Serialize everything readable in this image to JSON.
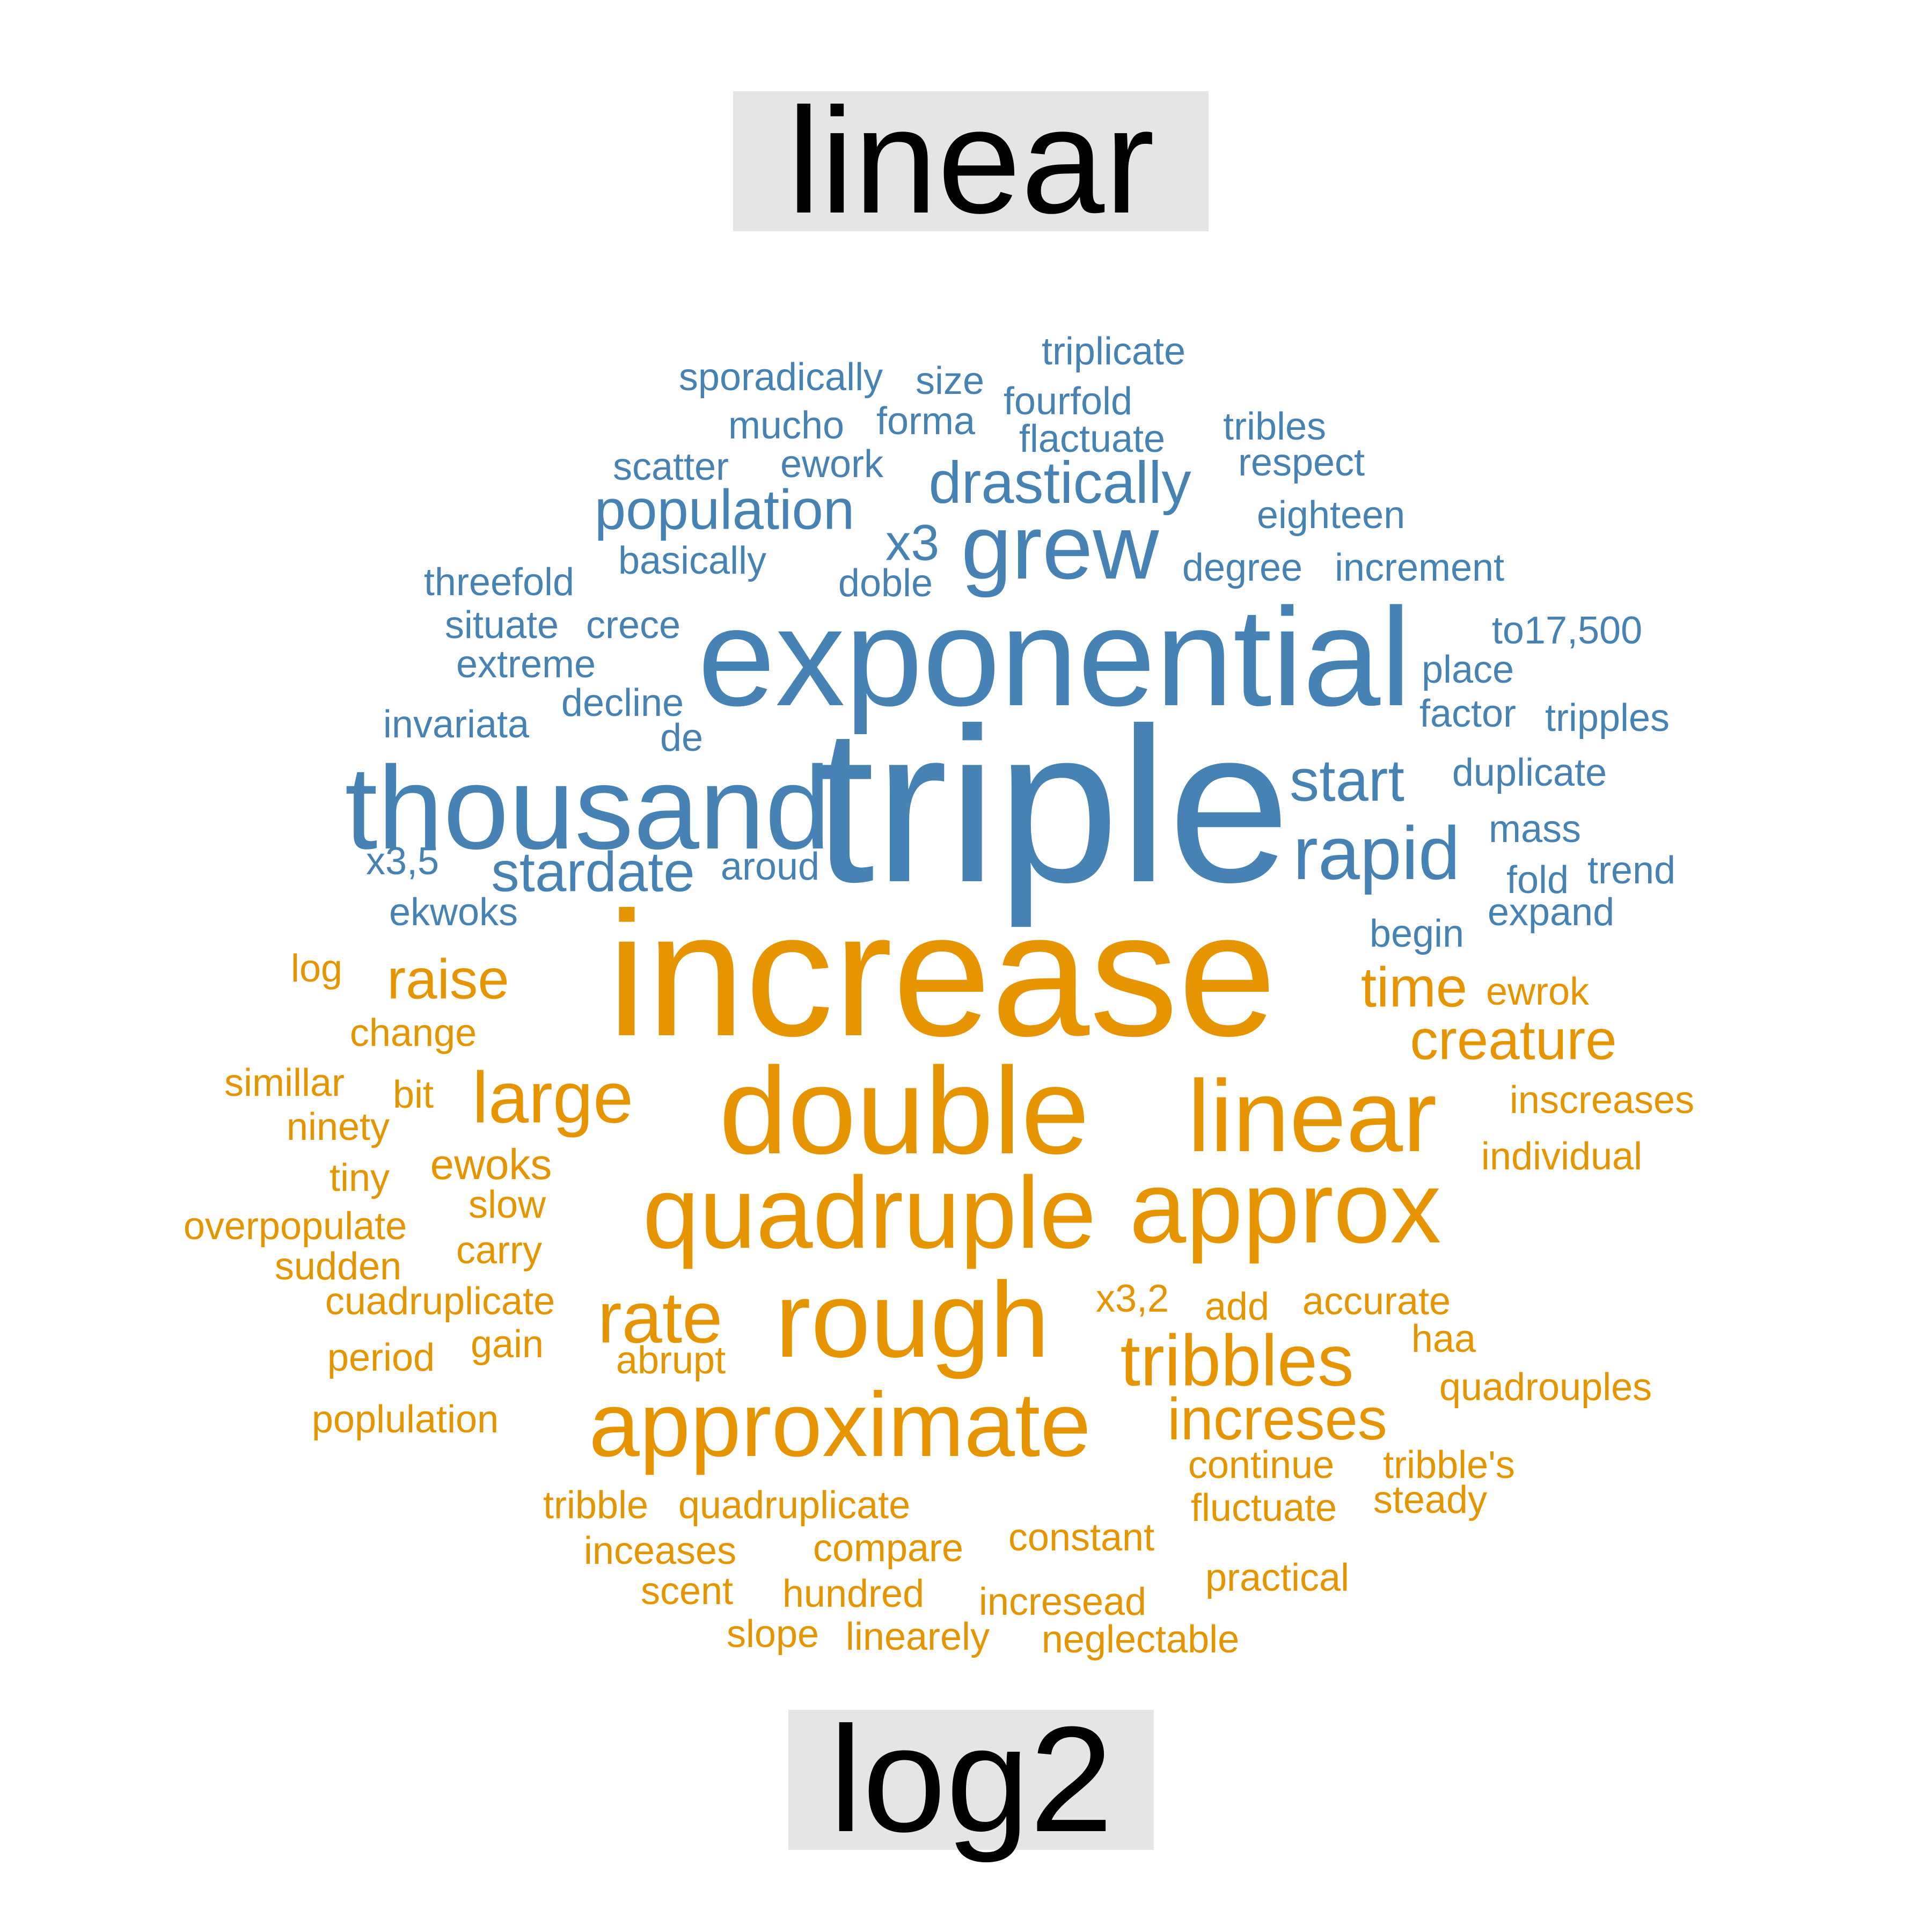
{
  "chart_data": {
    "type": "wordcloud",
    "groups": [
      {
        "name": "linear",
        "color": "#4682B4"
      },
      {
        "name": "log2",
        "color": "#E69500"
      }
    ],
    "words": [
      {
        "text": "triple",
        "group": "linear",
        "weight": 10
      },
      {
        "text": "exponential",
        "group": "linear",
        "weight": 7
      },
      {
        "text": "thousand",
        "group": "linear",
        "weight": 6
      },
      {
        "text": "grew",
        "group": "linear",
        "weight": 4
      },
      {
        "text": "rapid",
        "group": "linear",
        "weight": 3
      },
      {
        "text": "drastically",
        "group": "linear",
        "weight": 2.5
      },
      {
        "text": "population",
        "group": "linear",
        "weight": 2.5
      },
      {
        "text": "start",
        "group": "linear",
        "weight": 2.5
      },
      {
        "text": "stardate",
        "group": "linear",
        "weight": 2.5
      },
      {
        "text": "x3",
        "group": "linear",
        "weight": 2.5
      },
      {
        "text": "sporadically",
        "group": "linear",
        "weight": 1.5
      },
      {
        "text": "size",
        "group": "linear",
        "weight": 1.5
      },
      {
        "text": "triplicate",
        "group": "linear",
        "weight": 1.5
      },
      {
        "text": "fourfold",
        "group": "linear",
        "weight": 1.5
      },
      {
        "text": "mucho",
        "group": "linear",
        "weight": 1.5
      },
      {
        "text": "forma",
        "group": "linear",
        "weight": 1.5
      },
      {
        "text": "flactuate",
        "group": "linear",
        "weight": 1.5
      },
      {
        "text": "tribles",
        "group": "linear",
        "weight": 1.5
      },
      {
        "text": "scatter",
        "group": "linear",
        "weight": 1.5
      },
      {
        "text": "ework",
        "group": "linear",
        "weight": 1.5
      },
      {
        "text": "respect",
        "group": "linear",
        "weight": 1.5
      },
      {
        "text": "eighteen",
        "group": "linear",
        "weight": 1.5
      },
      {
        "text": "basically",
        "group": "linear",
        "weight": 1.5
      },
      {
        "text": "threefold",
        "group": "linear",
        "weight": 1.5
      },
      {
        "text": "doble",
        "group": "linear",
        "weight": 1.5
      },
      {
        "text": "degree",
        "group": "linear",
        "weight": 1.5
      },
      {
        "text": "increment",
        "group": "linear",
        "weight": 1.5
      },
      {
        "text": "situate",
        "group": "linear",
        "weight": 1.5
      },
      {
        "text": "crece",
        "group": "linear",
        "weight": 1.5
      },
      {
        "text": "to17,500",
        "group": "linear",
        "weight": 1.5
      },
      {
        "text": "extreme",
        "group": "linear",
        "weight": 1.5
      },
      {
        "text": "place",
        "group": "linear",
        "weight": 1.5
      },
      {
        "text": "decline",
        "group": "linear",
        "weight": 1.5
      },
      {
        "text": "invariata",
        "group": "linear",
        "weight": 1.5
      },
      {
        "text": "factor",
        "group": "linear",
        "weight": 1.5
      },
      {
        "text": "tripples",
        "group": "linear",
        "weight": 1.5
      },
      {
        "text": "de",
        "group": "linear",
        "weight": 1.5
      },
      {
        "text": "duplicate",
        "group": "linear",
        "weight": 1.5
      },
      {
        "text": "mass",
        "group": "linear",
        "weight": 1.5
      },
      {
        "text": "x3,5",
        "group": "linear",
        "weight": 1.5
      },
      {
        "text": "aroud",
        "group": "linear",
        "weight": 1.5
      },
      {
        "text": "trend",
        "group": "linear",
        "weight": 1.5
      },
      {
        "text": "fold",
        "group": "linear",
        "weight": 1.5
      },
      {
        "text": "ekwoks",
        "group": "linear",
        "weight": 1.5
      },
      {
        "text": "expand",
        "group": "linear",
        "weight": 1.5
      },
      {
        "text": "begin",
        "group": "linear",
        "weight": 1.5
      },
      {
        "text": "increase",
        "group": "log2",
        "weight": 12
      },
      {
        "text": "double",
        "group": "log2",
        "weight": 7
      },
      {
        "text": "linear",
        "group": "log2",
        "weight": 6
      },
      {
        "text": "quadruple",
        "group": "log2",
        "weight": 6
      },
      {
        "text": "approx",
        "group": "log2",
        "weight": 6
      },
      {
        "text": "rough",
        "group": "log2",
        "weight": 6
      },
      {
        "text": "approximate",
        "group": "log2",
        "weight": 5
      },
      {
        "text": "tribbles",
        "group": "log2",
        "weight": 4
      },
      {
        "text": "rate",
        "group": "log2",
        "weight": 4
      },
      {
        "text": "large",
        "group": "log2",
        "weight": 4
      },
      {
        "text": "increses",
        "group": "log2",
        "weight": 3
      },
      {
        "text": "raise",
        "group": "log2",
        "weight": 3
      },
      {
        "text": "time",
        "group": "log2",
        "weight": 3
      },
      {
        "text": "creature",
        "group": "log2",
        "weight": 3
      },
      {
        "text": "ewoks",
        "group": "log2",
        "weight": 2
      },
      {
        "text": "log",
        "group": "log2",
        "weight": 1.5
      },
      {
        "text": "ewrok",
        "group": "log2",
        "weight": 1.5
      },
      {
        "text": "change",
        "group": "log2",
        "weight": 1.5
      },
      {
        "text": "simillar",
        "group": "log2",
        "weight": 1.5
      },
      {
        "text": "bit",
        "group": "log2",
        "weight": 1.5
      },
      {
        "text": "inscreases",
        "group": "log2",
        "weight": 1.5
      },
      {
        "text": "ninety",
        "group": "log2",
        "weight": 1.5
      },
      {
        "text": "individual",
        "group": "log2",
        "weight": 1.5
      },
      {
        "text": "tiny",
        "group": "log2",
        "weight": 1.5
      },
      {
        "text": "slow",
        "group": "log2",
        "weight": 1.5
      },
      {
        "text": "overpopulate",
        "group": "log2",
        "weight": 1.5
      },
      {
        "text": "sudden",
        "group": "log2",
        "weight": 1.5
      },
      {
        "text": "carry",
        "group": "log2",
        "weight": 1.5
      },
      {
        "text": "cuadruplicate",
        "group": "log2",
        "weight": 1.5
      },
      {
        "text": "x3,2",
        "group": "log2",
        "weight": 1.5
      },
      {
        "text": "add",
        "group": "log2",
        "weight": 1.5
      },
      {
        "text": "accurate",
        "group": "log2",
        "weight": 1.5
      },
      {
        "text": "gain",
        "group": "log2",
        "weight": 1.5
      },
      {
        "text": "haa",
        "group": "log2",
        "weight": 1.5
      },
      {
        "text": "period",
        "group": "log2",
        "weight": 1.5
      },
      {
        "text": "abrupt",
        "group": "log2",
        "weight": 1.5
      },
      {
        "text": "quadrouples",
        "group": "log2",
        "weight": 1.5
      },
      {
        "text": "poplulation",
        "group": "log2",
        "weight": 1.5
      },
      {
        "text": "continue",
        "group": "log2",
        "weight": 1.5
      },
      {
        "text": "tribble's",
        "group": "log2",
        "weight": 1.5
      },
      {
        "text": "tribble",
        "group": "log2",
        "weight": 1.5
      },
      {
        "text": "quadruplicate",
        "group": "log2",
        "weight": 1.5
      },
      {
        "text": "fluctuate",
        "group": "log2",
        "weight": 1.5
      },
      {
        "text": "steady",
        "group": "log2",
        "weight": 1.5
      },
      {
        "text": "constant",
        "group": "log2",
        "weight": 1.5
      },
      {
        "text": "inceases",
        "group": "log2",
        "weight": 1.5
      },
      {
        "text": "compare",
        "group": "log2",
        "weight": 1.5
      },
      {
        "text": "practical",
        "group": "log2",
        "weight": 1.5
      },
      {
        "text": "scent",
        "group": "log2",
        "weight": 1.5
      },
      {
        "text": "hundred",
        "group": "log2",
        "weight": 1.5
      },
      {
        "text": "incresead",
        "group": "log2",
        "weight": 1.5
      },
      {
        "text": "slope",
        "group": "log2",
        "weight": 1.5
      },
      {
        "text": "linearely",
        "group": "log2",
        "weight": 1.5
      },
      {
        "text": "neglectable",
        "group": "log2",
        "weight": 1.5
      }
    ]
  }
}
